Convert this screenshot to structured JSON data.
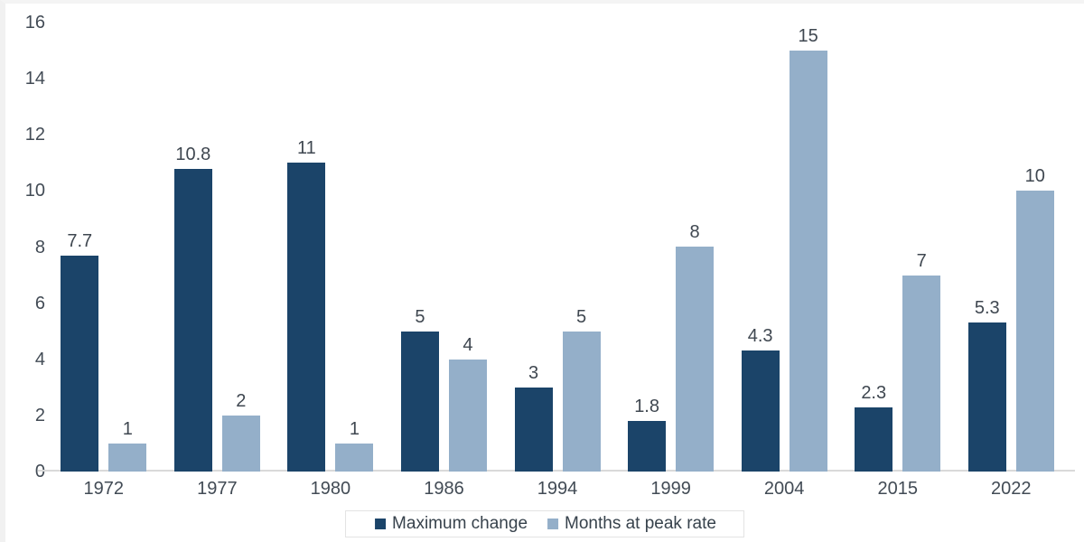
{
  "chart_data": {
    "type": "bar",
    "title": "",
    "categories": [
      "1972",
      "1977",
      "1980",
      "1986",
      "1994",
      "1999",
      "2004",
      "2015",
      "2022"
    ],
    "series": [
      {
        "name": "Maximum change",
        "color": "#1b4469",
        "values": [
          7.7,
          10.8,
          11,
          5,
          3,
          1.8,
          4.3,
          2.3,
          5.3
        ]
      },
      {
        "name": "Months at peak rate",
        "color": "#94afc9",
        "values": [
          1,
          2,
          1,
          4,
          5,
          8,
          15,
          7,
          10
        ]
      }
    ],
    "xlabel": "",
    "ylabel": "",
    "ylim": [
      0,
      16
    ],
    "ytick_step": 2,
    "grid": false,
    "bar_value_labels": true,
    "legend_position": "bottom-center"
  },
  "style_colors": {
    "axis_line": "#d9d9d9",
    "tick_text": "#424b55",
    "value_label_text": "#3f4750",
    "legend_border": "#e3e3e3",
    "background": "#ffffff"
  }
}
